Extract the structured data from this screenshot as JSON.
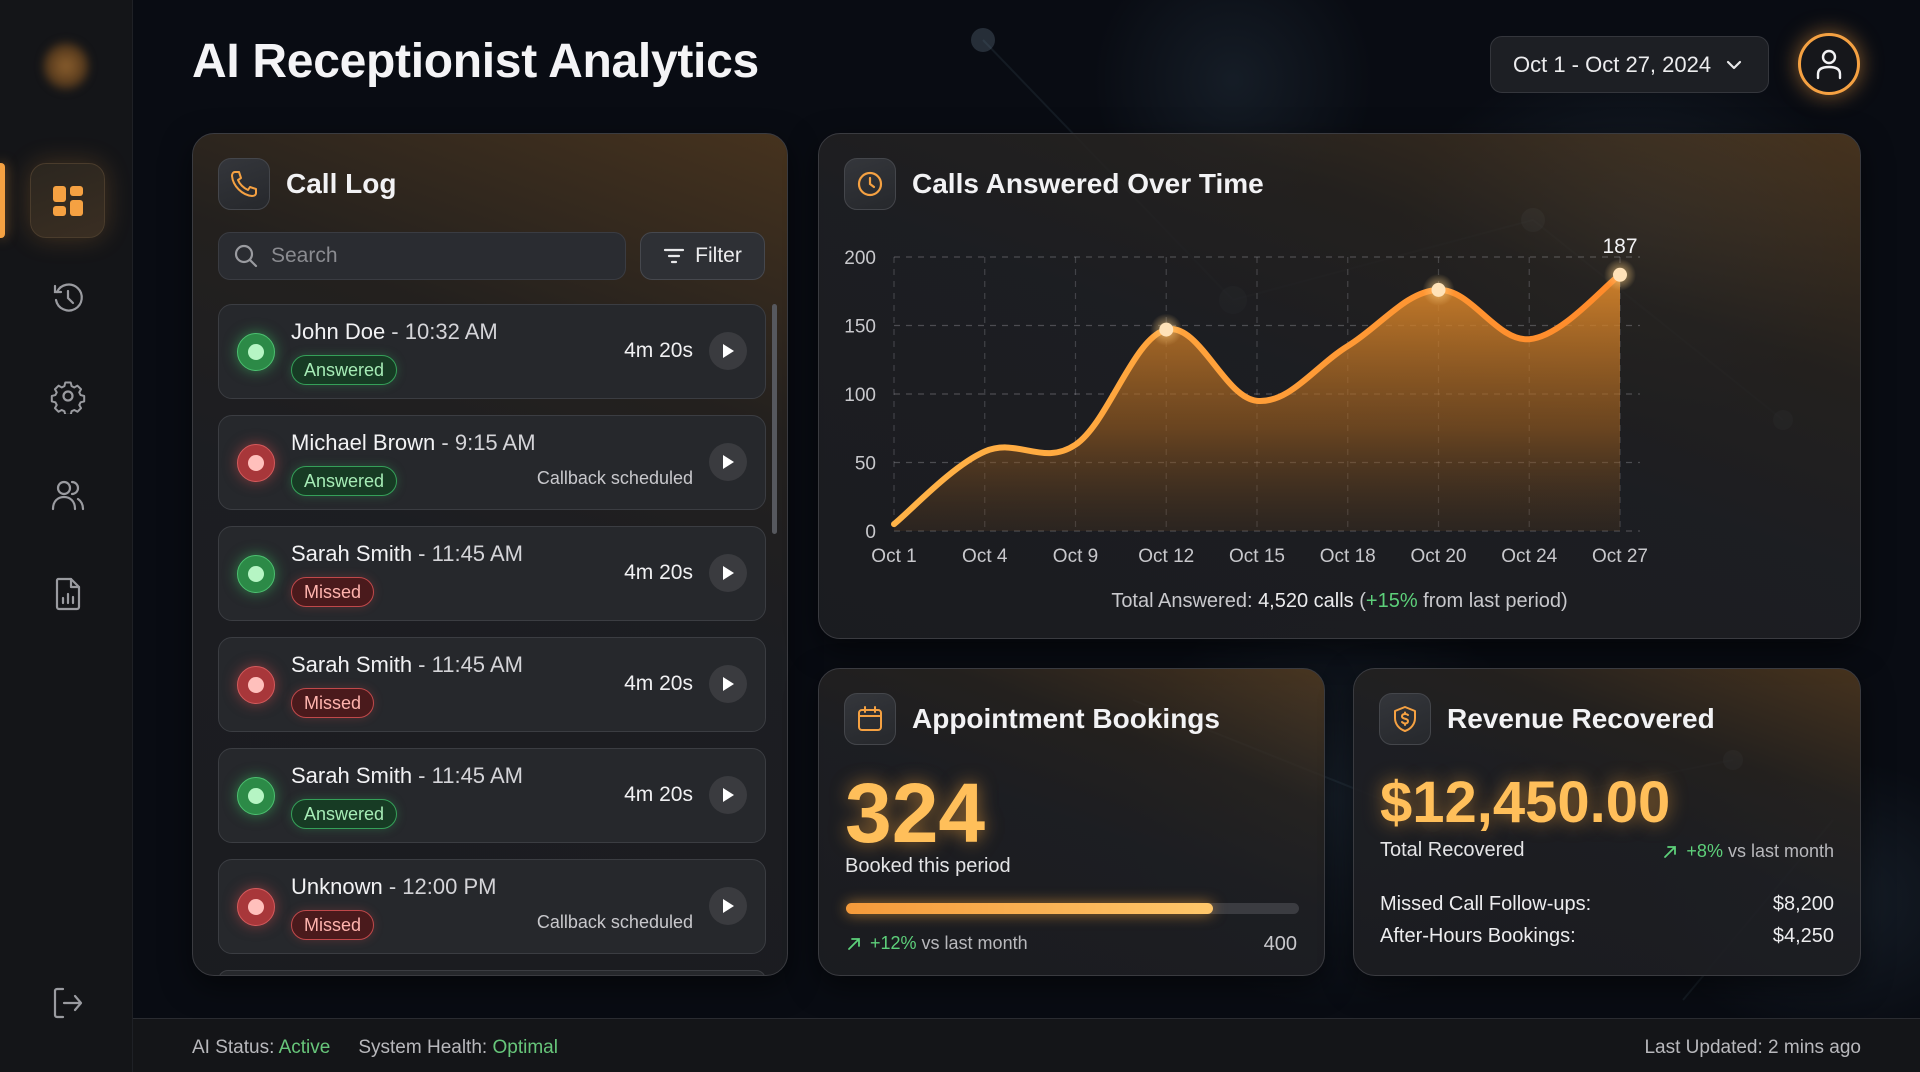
{
  "header": {
    "title": "AI Receptionist Analytics",
    "date_range": "Oct 1 - Oct 27, 2024"
  },
  "sidebar": {
    "items": [
      {
        "name": "dashboard",
        "icon": "dashboard-grid-icon",
        "active": true
      },
      {
        "name": "history",
        "icon": "history-icon",
        "active": false
      },
      {
        "name": "settings",
        "icon": "gear-icon",
        "active": false
      },
      {
        "name": "users",
        "icon": "users-icon",
        "active": false
      },
      {
        "name": "reports",
        "icon": "report-file-icon",
        "active": false
      }
    ],
    "logout_icon": "logout-icon"
  },
  "call_log": {
    "title": "Call Log",
    "search_placeholder": "Search",
    "filter_label": "Filter",
    "calls": [
      {
        "name": "John Doe",
        "time": "10:32 AM",
        "dot": "green",
        "status": "Answered",
        "duration": "4m 20s",
        "note": ""
      },
      {
        "name": "Michael Brown",
        "time": "9:15 AM",
        "dot": "red",
        "status": "Answered",
        "duration": "",
        "note": "Callback scheduled"
      },
      {
        "name": "Sarah Smith",
        "time": "11:45 AM",
        "dot": "green",
        "status": "Missed",
        "duration": "4m 20s",
        "note": ""
      },
      {
        "name": "Sarah Smith",
        "time": "11:45 AM",
        "dot": "red",
        "status": "Missed",
        "duration": "4m 20s",
        "note": ""
      },
      {
        "name": "Sarah Smith",
        "time": "11:45 AM",
        "dot": "green",
        "status": "Answered",
        "duration": "4m 20s",
        "note": ""
      },
      {
        "name": "Unknown",
        "time": "12:00 PM",
        "dot": "red",
        "status": "Missed",
        "duration": "",
        "note": "Callback scheduled"
      }
    ]
  },
  "calls_chart": {
    "title": "Calls Answered Over Time",
    "footer_prefix": "Total Answered: ",
    "footer_total": "4,520 calls",
    "footer_open": " (",
    "footer_change": "+15%",
    "footer_suffix": " from last period)",
    "peak_label": "187"
  },
  "chart_data": {
    "type": "area",
    "title": "Calls Answered Over Time",
    "xlabel": "",
    "ylabel": "",
    "categories": [
      "Oct 1",
      "Oct 4",
      "Oct 9",
      "Oct 12",
      "Oct 15",
      "Oct 18",
      "Oct 20",
      "Oct 24",
      "Oct 27"
    ],
    "values": [
      5,
      58,
      63,
      147,
      95,
      135,
      176,
      140,
      187
    ],
    "yticks": [
      0,
      50,
      100,
      150,
      200
    ],
    "ylim": [
      0,
      200
    ],
    "grid": true,
    "highlighted_points": [
      "Oct 12",
      "Oct 20",
      "Oct 27"
    ],
    "annotations": [
      {
        "x": "Oct 27",
        "label": "187"
      }
    ],
    "color": "#f5a142"
  },
  "bookings": {
    "title": "Appointment Bookings",
    "value": "324",
    "label": "Booked this period",
    "progress_percent": 81,
    "change": "+12%",
    "change_suffix": " vs last month",
    "target": "400"
  },
  "revenue": {
    "title": "Revenue Recovered",
    "value": "$12,450.00",
    "label": "Total Recovered",
    "change": "+8%",
    "change_suffix": " vs last month",
    "breakdown": [
      {
        "label": "Missed Call Follow-ups:",
        "value": "$8,200"
      },
      {
        "label": "After-Hours Bookings:",
        "value": "$4,250"
      }
    ]
  },
  "footer": {
    "ai_status_label": "AI Status: ",
    "ai_status_value": "Active",
    "health_label": "System Health: ",
    "health_value": "Optimal",
    "last_updated": "Last Updated: 2 mins ago"
  },
  "colors": {
    "accent": "#f5a142",
    "positive": "#5dd07a",
    "answered": "#35a059",
    "missed": "#c0484a",
    "background": "#090c13"
  }
}
